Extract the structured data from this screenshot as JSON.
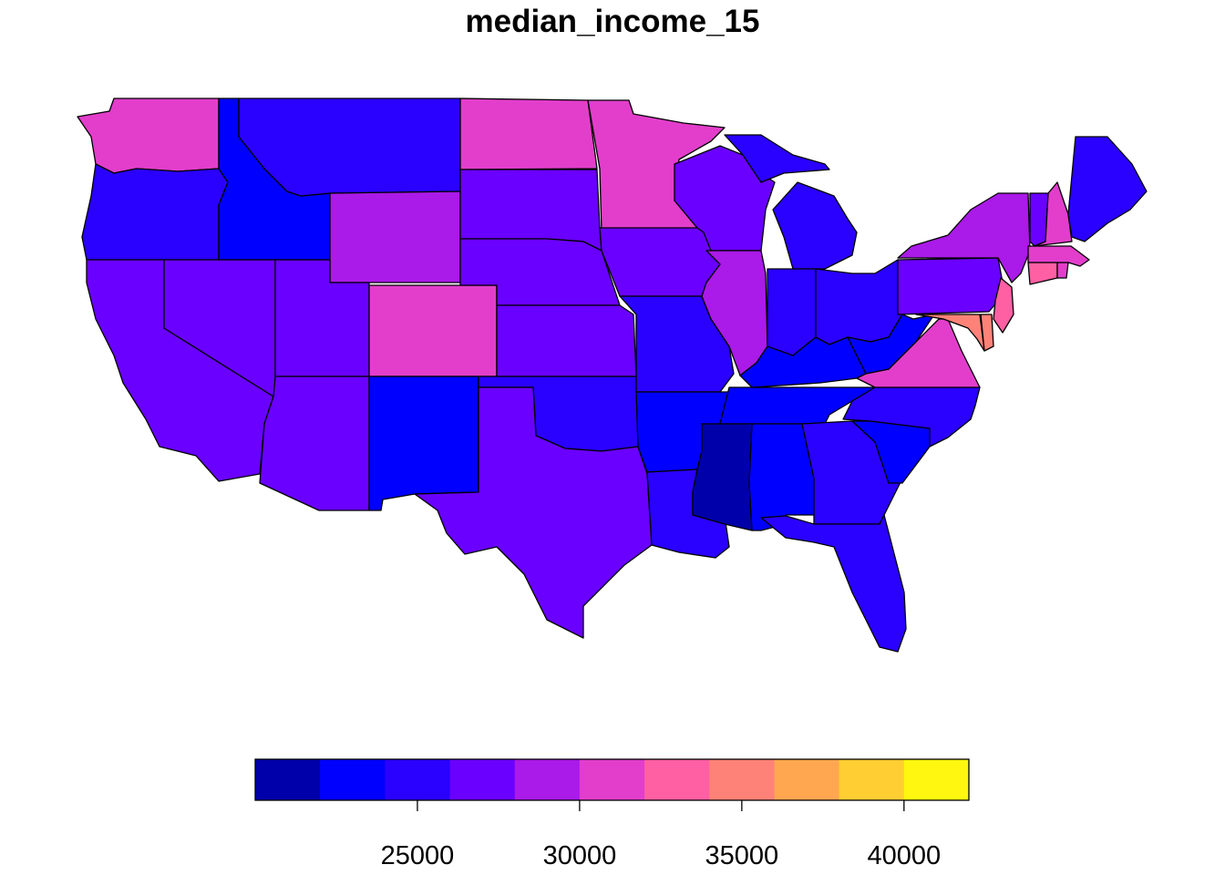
{
  "title": "median_income_15",
  "legend": {
    "breaks": [
      20000,
      22000,
      24000,
      26000,
      28000,
      30000,
      32000,
      34000,
      36000,
      38000,
      40000,
      42000
    ],
    "colors": [
      "#0000AA",
      "#0000FF",
      "#2A00FF",
      "#6A00FF",
      "#AA1AE8",
      "#E23ECB",
      "#FF5FA3",
      "#FF8278",
      "#FFA750",
      "#FFCE32",
      "#FFF70F"
    ],
    "ticks": [
      {
        "value": 25000,
        "label": "25000"
      },
      {
        "value": 30000,
        "label": "30000"
      },
      {
        "value": 35000,
        "label": "35000"
      },
      {
        "value": 40000,
        "label": "40000"
      }
    ]
  },
  "states": [
    {
      "name": "Washington",
      "color": "#E23ECB"
    },
    {
      "name": "Oregon",
      "color": "#2A00FF"
    },
    {
      "name": "California",
      "color": "#6A00FF"
    },
    {
      "name": "Idaho",
      "color": "#0000FF"
    },
    {
      "name": "Nevada",
      "color": "#6A00FF"
    },
    {
      "name": "Montana",
      "color": "#2A00FF"
    },
    {
      "name": "Wyoming",
      "color": "#AA1AE8"
    },
    {
      "name": "Utah",
      "color": "#6A00FF"
    },
    {
      "name": "Colorado",
      "color": "#E23ECB"
    },
    {
      "name": "Arizona",
      "color": "#6A00FF"
    },
    {
      "name": "New Mexico",
      "color": "#0000FF"
    },
    {
      "name": "North Dakota",
      "color": "#E23ECB"
    },
    {
      "name": "South Dakota",
      "color": "#6A00FF"
    },
    {
      "name": "Nebraska",
      "color": "#6A00FF"
    },
    {
      "name": "Kansas",
      "color": "#6A00FF"
    },
    {
      "name": "Oklahoma",
      "color": "#2A00FF"
    },
    {
      "name": "Texas",
      "color": "#6A00FF"
    },
    {
      "name": "Minnesota",
      "color": "#E23ECB"
    },
    {
      "name": "Iowa",
      "color": "#6A00FF"
    },
    {
      "name": "Missouri",
      "color": "#2A00FF"
    },
    {
      "name": "Arkansas",
      "color": "#0000FF"
    },
    {
      "name": "Louisiana",
      "color": "#2A00FF"
    },
    {
      "name": "Wisconsin",
      "color": "#6A00FF"
    },
    {
      "name": "Illinois",
      "color": "#AA1AE8"
    },
    {
      "name": "Michigan",
      "color": "#2A00FF"
    },
    {
      "name": "Indiana",
      "color": "#2A00FF"
    },
    {
      "name": "Ohio",
      "color": "#2A00FF"
    },
    {
      "name": "Kentucky",
      "color": "#0000FF"
    },
    {
      "name": "Tennessee",
      "color": "#0000FF"
    },
    {
      "name": "Mississippi",
      "color": "#0000AA"
    },
    {
      "name": "Alabama",
      "color": "#0000FF"
    },
    {
      "name": "Georgia",
      "color": "#2A00FF"
    },
    {
      "name": "Florida",
      "color": "#2A00FF"
    },
    {
      "name": "South Carolina",
      "color": "#0000FF"
    },
    {
      "name": "North Carolina",
      "color": "#2A00FF"
    },
    {
      "name": "Virginia",
      "color": "#E23ECB"
    },
    {
      "name": "West Virginia",
      "color": "#0000FF"
    },
    {
      "name": "Maryland",
      "color": "#FF8278"
    },
    {
      "name": "Delaware",
      "color": "#FF8278"
    },
    {
      "name": "Pennsylvania",
      "color": "#6A00FF"
    },
    {
      "name": "New Jersey",
      "color": "#FF5FA3"
    },
    {
      "name": "New York",
      "color": "#AA1AE8"
    },
    {
      "name": "Connecticut",
      "color": "#FF5FA3"
    },
    {
      "name": "Rhode Island",
      "color": "#E23ECB"
    },
    {
      "name": "Massachusetts",
      "color": "#E23ECB"
    },
    {
      "name": "Vermont",
      "color": "#6A00FF"
    },
    {
      "name": "New Hampshire",
      "color": "#E23ECB"
    },
    {
      "name": "Maine",
      "color": "#2A00FF"
    }
  ]
}
